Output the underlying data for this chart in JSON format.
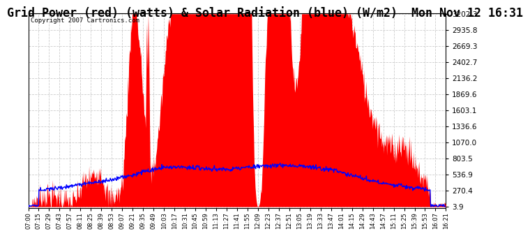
{
  "title": "Grid Power (red) (watts) & Solar Radiation (blue) (W/m2)  Mon Nov 12 16:31",
  "copyright": "Copyright 2007 Cartronics.com",
  "y_ticks": [
    3.9,
    270.4,
    536.9,
    803.5,
    1070.0,
    1336.6,
    1603.1,
    1869.6,
    2136.2,
    2402.7,
    2669.3,
    2935.8,
    3202.3
  ],
  "ymin": 3.9,
  "ymax": 3202.3,
  "x_labels": [
    "07:00",
    "07:15",
    "07:29",
    "07:43",
    "07:57",
    "08:11",
    "08:25",
    "08:39",
    "08:53",
    "09:07",
    "09:21",
    "09:35",
    "09:49",
    "10:03",
    "10:17",
    "10:31",
    "10:45",
    "10:59",
    "11:13",
    "11:27",
    "11:41",
    "11:55",
    "12:09",
    "12:23",
    "12:37",
    "12:51",
    "13:05",
    "13:19",
    "13:33",
    "13:47",
    "14:01",
    "14:15",
    "14:29",
    "14:43",
    "14:57",
    "15:11",
    "15:25",
    "15:39",
    "15:53",
    "16:07",
    "16:21"
  ],
  "background_color": "#ffffff",
  "grid_color": "#cccccc",
  "title_fontsize": 12,
  "red_color": "#ff0000",
  "blue_color": "#0000ff",
  "n_points": 820
}
